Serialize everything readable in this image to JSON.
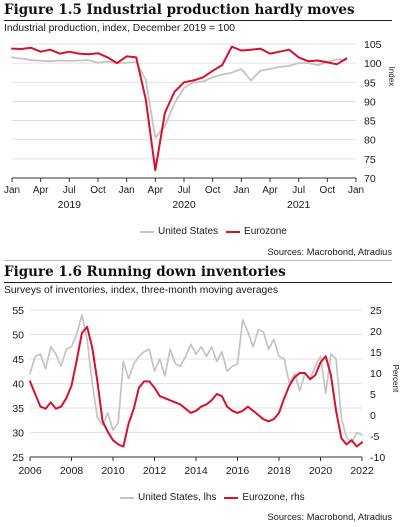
{
  "figures": [
    {
      "title": "Figure 1.5 Industrial production hardly moves",
      "subtitle": "Industrial production, index, December 2019 = 100",
      "source": "Sources: Macrobond, Atradius",
      "legend": [
        "United States",
        "Eurozone"
      ]
    },
    {
      "title": "Figure 1.6 Running down inventories",
      "subtitle": "Surveys of inventories, index, three-month moving averages",
      "source": "Sources: Macrobond, Atradius",
      "legend": [
        "United States, lhs",
        "Eurozone, rhs"
      ]
    }
  ],
  "colors": {
    "united_states": "#c4c4c4",
    "eurozone": "#d7102e",
    "grid": "#d9d9d9",
    "axis": "#333333"
  },
  "chart_data": [
    {
      "type": "line",
      "title": "Figure 1.5 Industrial production hardly moves",
      "subtitle": "Industrial production, index, December 2019 = 100",
      "xlabel": "",
      "ylabel": "Index",
      "x_tick_labels": [
        "Jan",
        "Apr",
        "Jul",
        "Oct",
        "Jan",
        "Apr",
        "Jul",
        "Oct",
        "Jan",
        "Apr",
        "Jul",
        "Oct",
        "Jan"
      ],
      "x_year_labels": [
        "2019",
        "2020",
        "2021"
      ],
      "x_range": [
        "2019-01",
        "2022-01"
      ],
      "ylim": [
        70,
        105
      ],
      "y_ticks": [
        70,
        75,
        80,
        85,
        90,
        95,
        100,
        105
      ],
      "y_axis_side": "right",
      "grid": true,
      "legend_position": "bottom",
      "x": [
        "2019-01",
        "2019-02",
        "2019-03",
        "2019-04",
        "2019-05",
        "2019-06",
        "2019-07",
        "2019-08",
        "2019-09",
        "2019-10",
        "2019-11",
        "2019-12",
        "2020-01",
        "2020-02",
        "2020-03",
        "2020-04",
        "2020-05",
        "2020-06",
        "2020-07",
        "2020-08",
        "2020-09",
        "2020-10",
        "2020-11",
        "2020-12",
        "2021-01",
        "2021-02",
        "2021-03",
        "2021-04",
        "2021-05",
        "2021-06",
        "2021-07",
        "2021-08",
        "2021-09",
        "2021-10",
        "2021-11",
        "2021-12"
      ],
      "series": [
        {
          "name": "United States",
          "values": [
            101.5,
            101.2,
            100.8,
            100.6,
            100.5,
            100.7,
            100.6,
            100.7,
            100.8,
            100.1,
            100.4,
            100.0,
            100.1,
            100.3,
            95.6,
            80.5,
            83.5,
            89.5,
            93.5,
            95.0,
            95.2,
            96.3,
            97.0,
            97.5,
            98.5,
            95.5,
            98.0,
            98.5,
            99.0,
            99.3,
            100.0,
            100.0,
            99.5,
            100.3,
            101.0,
            100.8
          ]
        },
        {
          "name": "Eurozone",
          "values": [
            103.8,
            103.7,
            104.0,
            103.0,
            103.5,
            102.5,
            103.0,
            102.5,
            102.3,
            102.6,
            101.5,
            100.0,
            101.8,
            101.5,
            90.5,
            72.0,
            87.0,
            92.5,
            95.0,
            95.5,
            96.3,
            98.0,
            99.5,
            104.3,
            103.3,
            103.5,
            103.8,
            102.5,
            103.0,
            103.5,
            101.5,
            100.5,
            100.7,
            100.2,
            99.7,
            101.2
          ]
        }
      ]
    },
    {
      "type": "line",
      "title": "Figure 1.6 Running down inventories",
      "subtitle": "Surveys of inventories, index, three-month moving averages",
      "xlabel": "",
      "ylabel_right": "Percent",
      "x_tick_labels": [
        "2006",
        "2008",
        "2010",
        "2012",
        "2014",
        "2016",
        "2018",
        "2020",
        "2022"
      ],
      "x_range": [
        2006,
        2022
      ],
      "ylim_left": [
        25,
        55
      ],
      "y_ticks_left": [
        25,
        30,
        35,
        40,
        45,
        50,
        55
      ],
      "ylim_right": [
        -10,
        25
      ],
      "y_ticks_right": [
        -10,
        -5,
        0,
        5,
        10,
        15,
        20,
        25
      ],
      "grid": true,
      "legend_position": "bottom",
      "series": [
        {
          "name": "United States, lhs",
          "axis": "left",
          "x": [
            2006.0,
            2006.25,
            2006.5,
            2006.75,
            2007.0,
            2007.25,
            2007.5,
            2007.75,
            2008.0,
            2008.25,
            2008.5,
            2008.75,
            2009.0,
            2009.25,
            2009.5,
            2009.75,
            2010.0,
            2010.25,
            2010.5,
            2010.75,
            2011.0,
            2011.25,
            2011.5,
            2011.75,
            2012.0,
            2012.25,
            2012.5,
            2012.75,
            2013.0,
            2013.25,
            2013.5,
            2013.75,
            2014.0,
            2014.25,
            2014.5,
            2014.75,
            2015.0,
            2015.25,
            2015.5,
            2015.75,
            2016.0,
            2016.25,
            2016.5,
            2016.75,
            2017.0,
            2017.25,
            2017.5,
            2017.75,
            2018.0,
            2018.25,
            2018.5,
            2018.75,
            2019.0,
            2019.25,
            2019.5,
            2019.75,
            2020.0,
            2020.25,
            2020.5,
            2020.75,
            2021.0,
            2021.25,
            2021.5,
            2021.75,
            2022.0
          ],
          "values": [
            42.0,
            45.5,
            46.0,
            43.0,
            47.5,
            46.0,
            43.5,
            47.0,
            47.5,
            50.0,
            54.0,
            49.0,
            40.0,
            33.0,
            31.5,
            34.0,
            30.5,
            32.0,
            44.5,
            41.0,
            44.0,
            45.5,
            46.5,
            47.0,
            42.5,
            45.0,
            41.5,
            47.0,
            44.0,
            43.5,
            45.5,
            48.0,
            46.0,
            47.5,
            45.5,
            47.5,
            44.5,
            46.5,
            42.5,
            43.5,
            44.0,
            53.0,
            50.5,
            47.5,
            51.0,
            50.5,
            47.0,
            49.0,
            45.5,
            45.0,
            40.0,
            42.0,
            38.5,
            42.0,
            41.0,
            43.5,
            45.5,
            38.0,
            46.0,
            45.0,
            33.0,
            29.0,
            28.0,
            30.0,
            29.5
          ]
        },
        {
          "name": "Eurozone, rhs",
          "axis": "right",
          "x": [
            2006.0,
            2006.25,
            2006.5,
            2006.75,
            2007.0,
            2007.25,
            2007.5,
            2007.75,
            2008.0,
            2008.25,
            2008.5,
            2008.75,
            2009.0,
            2009.25,
            2009.5,
            2009.75,
            2010.0,
            2010.25,
            2010.5,
            2010.75,
            2011.0,
            2011.25,
            2011.5,
            2011.75,
            2012.0,
            2012.25,
            2012.5,
            2012.75,
            2013.0,
            2013.25,
            2013.5,
            2013.75,
            2014.0,
            2014.25,
            2014.5,
            2014.75,
            2015.0,
            2015.25,
            2015.5,
            2015.75,
            2016.0,
            2016.25,
            2016.5,
            2016.75,
            2017.0,
            2017.25,
            2017.5,
            2017.75,
            2018.0,
            2018.25,
            2018.5,
            2018.75,
            2019.0,
            2019.25,
            2019.5,
            2019.75,
            2020.0,
            2020.25,
            2020.5,
            2020.75,
            2021.0,
            2021.25,
            2021.5,
            2021.75,
            2022.0
          ],
          "values": [
            8.0,
            5.0,
            2.0,
            1.5,
            3.0,
            1.5,
            2.0,
            4.0,
            7.0,
            13.0,
            19.5,
            21.0,
            16.0,
            8.0,
            -1.5,
            -4.0,
            -6.0,
            -7.0,
            -7.5,
            -2.0,
            1.5,
            6.5,
            8.0,
            8.0,
            6.5,
            4.5,
            4.0,
            3.5,
            3.0,
            2.5,
            1.5,
            0.5,
            1.0,
            2.0,
            2.5,
            3.5,
            5.0,
            4.5,
            2.0,
            1.0,
            0.5,
            1.0,
            2.0,
            1.0,
            0.0,
            -1.0,
            -1.5,
            -1.0,
            0.5,
            4.0,
            7.0,
            9.0,
            10.0,
            10.0,
            8.5,
            9.5,
            12.5,
            14.0,
            9.5,
            1.0,
            -5.5,
            -7.0,
            -6.0,
            -7.5,
            -6.5
          ]
        }
      ]
    }
  ]
}
